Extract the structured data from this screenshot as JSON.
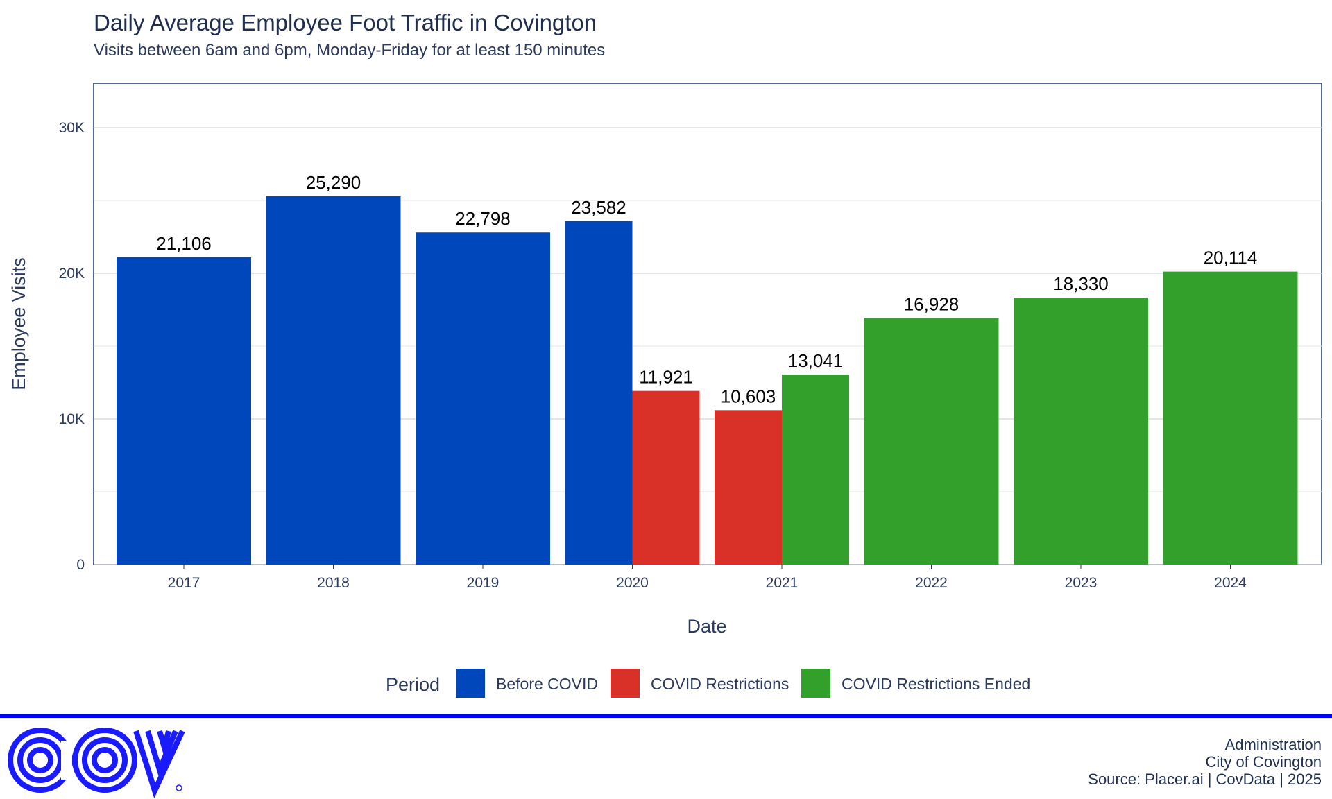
{
  "chart_data": {
    "type": "bar",
    "title": "Daily Average Employee Foot Traffic in Covington",
    "subtitle": "Visits between 6am and 6pm, Monday-Friday for at least 150 minutes",
    "xlabel": "Date",
    "ylabel": "Employee Visits",
    "ylim": [
      0,
      33000
    ],
    "y_ticks": [
      0,
      10000,
      20000,
      30000
    ],
    "y_tick_labels": [
      "0",
      "10K",
      "20K",
      "30K"
    ],
    "grid": true,
    "x_ticks": [
      "2017",
      "2018",
      "2019",
      "2020",
      "2021",
      "2022",
      "2023",
      "2024"
    ],
    "legend": {
      "title": "Period",
      "position": "bottom",
      "entries": [
        {
          "name": "Before COVID",
          "color": "#0047bb"
        },
        {
          "name": "COVID Restrictions",
          "color": "#d93027"
        },
        {
          "name": "COVID Restrictions Ended",
          "color": "#33a02c"
        }
      ]
    },
    "bars": [
      {
        "x": "2017",
        "offset": 0,
        "value": 21106,
        "label": "21,106",
        "period": "Before COVID"
      },
      {
        "x": "2018",
        "offset": 0,
        "value": 25290,
        "label": "25,290",
        "period": "Before COVID"
      },
      {
        "x": "2019",
        "offset": 0,
        "value": 22798,
        "label": "22,798",
        "period": "Before COVID"
      },
      {
        "x": "2020",
        "offset": -0.5,
        "value": 23582,
        "label": "23,582",
        "period": "Before COVID"
      },
      {
        "x": "2020",
        "offset": 0.5,
        "value": 11921,
        "label": "11,921",
        "period": "COVID Restrictions"
      },
      {
        "x": "2021",
        "offset": -0.5,
        "value": 10603,
        "label": "10,603",
        "period": "COVID Restrictions"
      },
      {
        "x": "2021",
        "offset": 0.5,
        "value": 13041,
        "label": "13,041",
        "period": "COVID Restrictions Ended"
      },
      {
        "x": "2022",
        "offset": 0,
        "value": 16928,
        "label": "16,928",
        "period": "COVID Restrictions Ended"
      },
      {
        "x": "2023",
        "offset": 0,
        "value": 18330,
        "label": "18,330",
        "period": "COVID Restrictions Ended"
      },
      {
        "x": "2024",
        "offset": 0,
        "value": 20114,
        "label": "20,114",
        "period": "COVID Restrictions Ended"
      }
    ]
  },
  "footer": {
    "logo_text": "COV",
    "lines": [
      "Administration",
      "City of Covington",
      "Source: Placer.ai | CovData | 2025"
    ],
    "rule_color": "#0000ff"
  }
}
